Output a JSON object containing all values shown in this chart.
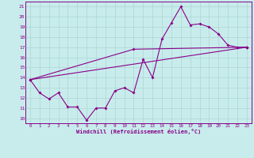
{
  "xlabel": "Windchill (Refroidissement éolien,°C)",
  "bg_color": "#c8ecec",
  "grid_color": "#aed4d4",
  "line_color": "#880088",
  "xlim": [
    -0.5,
    23.5
  ],
  "ylim": [
    9.5,
    21.5
  ],
  "xticks": [
    0,
    1,
    2,
    3,
    4,
    5,
    6,
    7,
    8,
    9,
    10,
    11,
    12,
    13,
    14,
    15,
    16,
    17,
    18,
    19,
    20,
    21,
    22,
    23
  ],
  "yticks": [
    10,
    11,
    12,
    13,
    14,
    15,
    16,
    17,
    18,
    19,
    20,
    21
  ],
  "line1_x": [
    0,
    1,
    2,
    3,
    4,
    5,
    6,
    7,
    8,
    9,
    10,
    11,
    12,
    13,
    14,
    15,
    16,
    17,
    18,
    19,
    20,
    21,
    22,
    23
  ],
  "line1_y": [
    13.8,
    12.5,
    11.9,
    12.5,
    11.1,
    11.1,
    9.8,
    11.0,
    11.0,
    12.7,
    13.0,
    12.5,
    15.8,
    14.0,
    17.8,
    19.4,
    21.0,
    19.2,
    19.3,
    19.0,
    18.3,
    17.2,
    17.0,
    17.0
  ],
  "line2_x": [
    0,
    23
  ],
  "line2_y": [
    13.8,
    17.0
  ],
  "line3_x": [
    0,
    11,
    23
  ],
  "line3_y": [
    13.8,
    16.8,
    17.0
  ]
}
